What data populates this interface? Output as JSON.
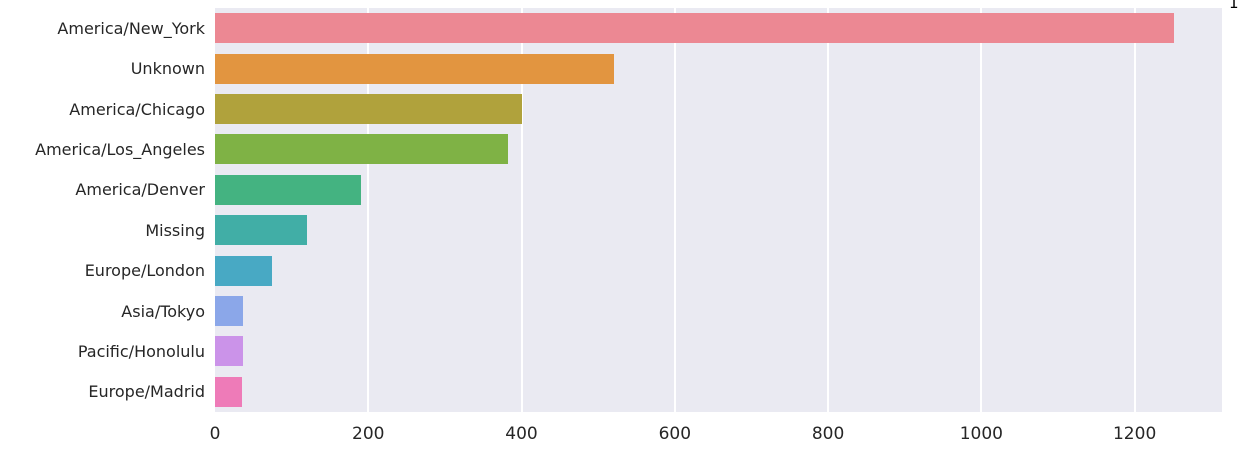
{
  "figure": {
    "page_background": "#ffffff",
    "plot_background": "#eaeaf2",
    "gridline_color": "#ffffff",
    "text_color": "#262626"
  },
  "decorations": {
    "corner_mark": "1"
  },
  "chart_data": {
    "type": "bar",
    "orientation": "horizontal",
    "title": "",
    "xlabel": "",
    "ylabel": "",
    "categories": [
      "America/New_York",
      "Unknown",
      "America/Chicago",
      "America/Los_Angeles",
      "America/Denver",
      "Missing",
      "Europe/London",
      "Asia/Tokyo",
      "Pacific/Honolulu",
      "Europe/Madrid"
    ],
    "values": [
      1251,
      521,
      400,
      382,
      191,
      120,
      74,
      37,
      36,
      35
    ],
    "bar_colors": [
      "#ec8893",
      "#e29540",
      "#b0a23c",
      "#7fb245",
      "#44b381",
      "#41aea6",
      "#48a9c4",
      "#8ba7e9",
      "#cb93e9",
      "#ee7bb8"
    ],
    "x_ticks": [
      0,
      200,
      400,
      600,
      800,
      1000,
      1200
    ],
    "xlim": [
      0,
      1314
    ],
    "grid": true,
    "legend": "none"
  }
}
